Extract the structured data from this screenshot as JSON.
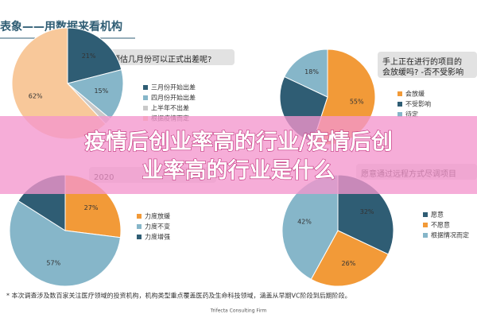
{
  "header": {
    "title": "表象——用数据来看机构"
  },
  "banner": {
    "lines": [
      "疫情后创业率高的行业/疫情后创",
      "业率高的行业是什么"
    ]
  },
  "footer": {
    "note": "* 本次调查涉及数百家关注医疗领域的投资机构，机构类型重点覆盖医药及生命科技领域，涵盖从早期VC阶段到后期阶段。",
    "source": "Trifecta Consulting Firm"
  },
  "chart_data": [
    {
      "type": "pie",
      "title": [
        "预估几月份可以正式出差呢?"
      ],
      "categories": [
        "三月份开始出差",
        "四月份开始出差",
        "上半年不出差",
        "根据疫情而定"
      ],
      "values": [
        21,
        15,
        2,
        62
      ],
      "value_labels": [
        "21%",
        "15%",
        null,
        "62%"
      ],
      "colors": [
        "#2f5d74",
        "#86b6c9",
        "#c9c9c9",
        "#f8c89a"
      ]
    },
    {
      "type": "pie",
      "title": [
        "手上正在进行的项目的",
        "会放缓吗? -否不受影响"
      ],
      "categories": [
        "会放缓",
        "不受影响",
        "待定"
      ],
      "values": [
        55,
        27,
        18
      ],
      "value_labels": [
        "55%",
        null,
        "18%"
      ],
      "colors": [
        "#f29a38",
        "#2f5d74",
        "#86b6c9"
      ]
    },
    {
      "type": "pie",
      "title": [
        "2020"
      ],
      "categories": [
        "力度放缓",
        "力度不变",
        "力度增强"
      ],
      "values": [
        27,
        57,
        16
      ],
      "value_labels": [
        "27%",
        "57%",
        null
      ],
      "colors": [
        "#f29a38",
        "#86b6c9",
        "#2f5d74"
      ]
    },
    {
      "type": "pie",
      "title": [
        "愿意通过远程方式尽调项目"
      ],
      "categories": [
        "愿意",
        "不愿意",
        "根据情况而定"
      ],
      "values": [
        32,
        26,
        42
      ],
      "value_labels": [
        "32%",
        "26%",
        "42%"
      ],
      "colors": [
        "#2f5d74",
        "#f29a38",
        "#86b6c9"
      ]
    }
  ]
}
